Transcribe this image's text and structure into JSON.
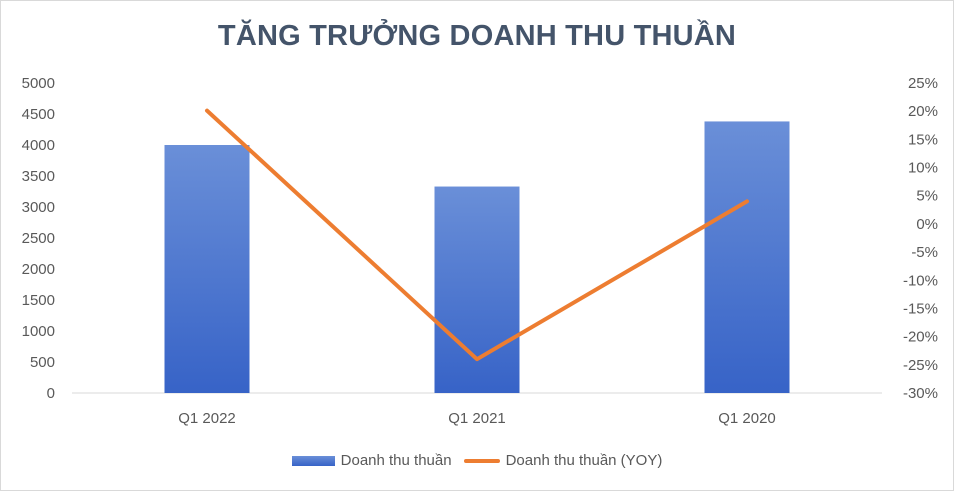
{
  "chart_data": {
    "type": "bar",
    "title": "TĂNG TRƯỞNG DOANH THU THUẦN",
    "categories": [
      "Q1 2022",
      "Q1 2021",
      "Q1 2020"
    ],
    "series": [
      {
        "name": "Doanh thu thuần",
        "type": "bar",
        "axis": "left",
        "values": [
          4000,
          3330,
          4380
        ]
      },
      {
        "name": "Doanh thu thuần (YOY)",
        "type": "line",
        "axis": "right",
        "values": [
          20.1,
          -24.0,
          4.0
        ]
      }
    ],
    "y_left": {
      "ylim": [
        0,
        5000
      ],
      "ticks": [
        "0",
        "500",
        "1000",
        "1500",
        "2000",
        "2500",
        "3000",
        "3500",
        "4000",
        "4500",
        "5000"
      ]
    },
    "y_right": {
      "ylim": [
        -30,
        25
      ],
      "ticks": [
        "-30%",
        "-25%",
        "-20%",
        "-15%",
        "-10%",
        "-5%",
        "0%",
        "5%",
        "10%",
        "15%",
        "20%",
        "25%"
      ]
    },
    "colors": {
      "bar_top": "#6a8fd8",
      "bar_bottom": "#3763c7",
      "line": "#ed7d31",
      "title": "#44546a"
    },
    "legend_position": "bottom",
    "grid": false
  }
}
